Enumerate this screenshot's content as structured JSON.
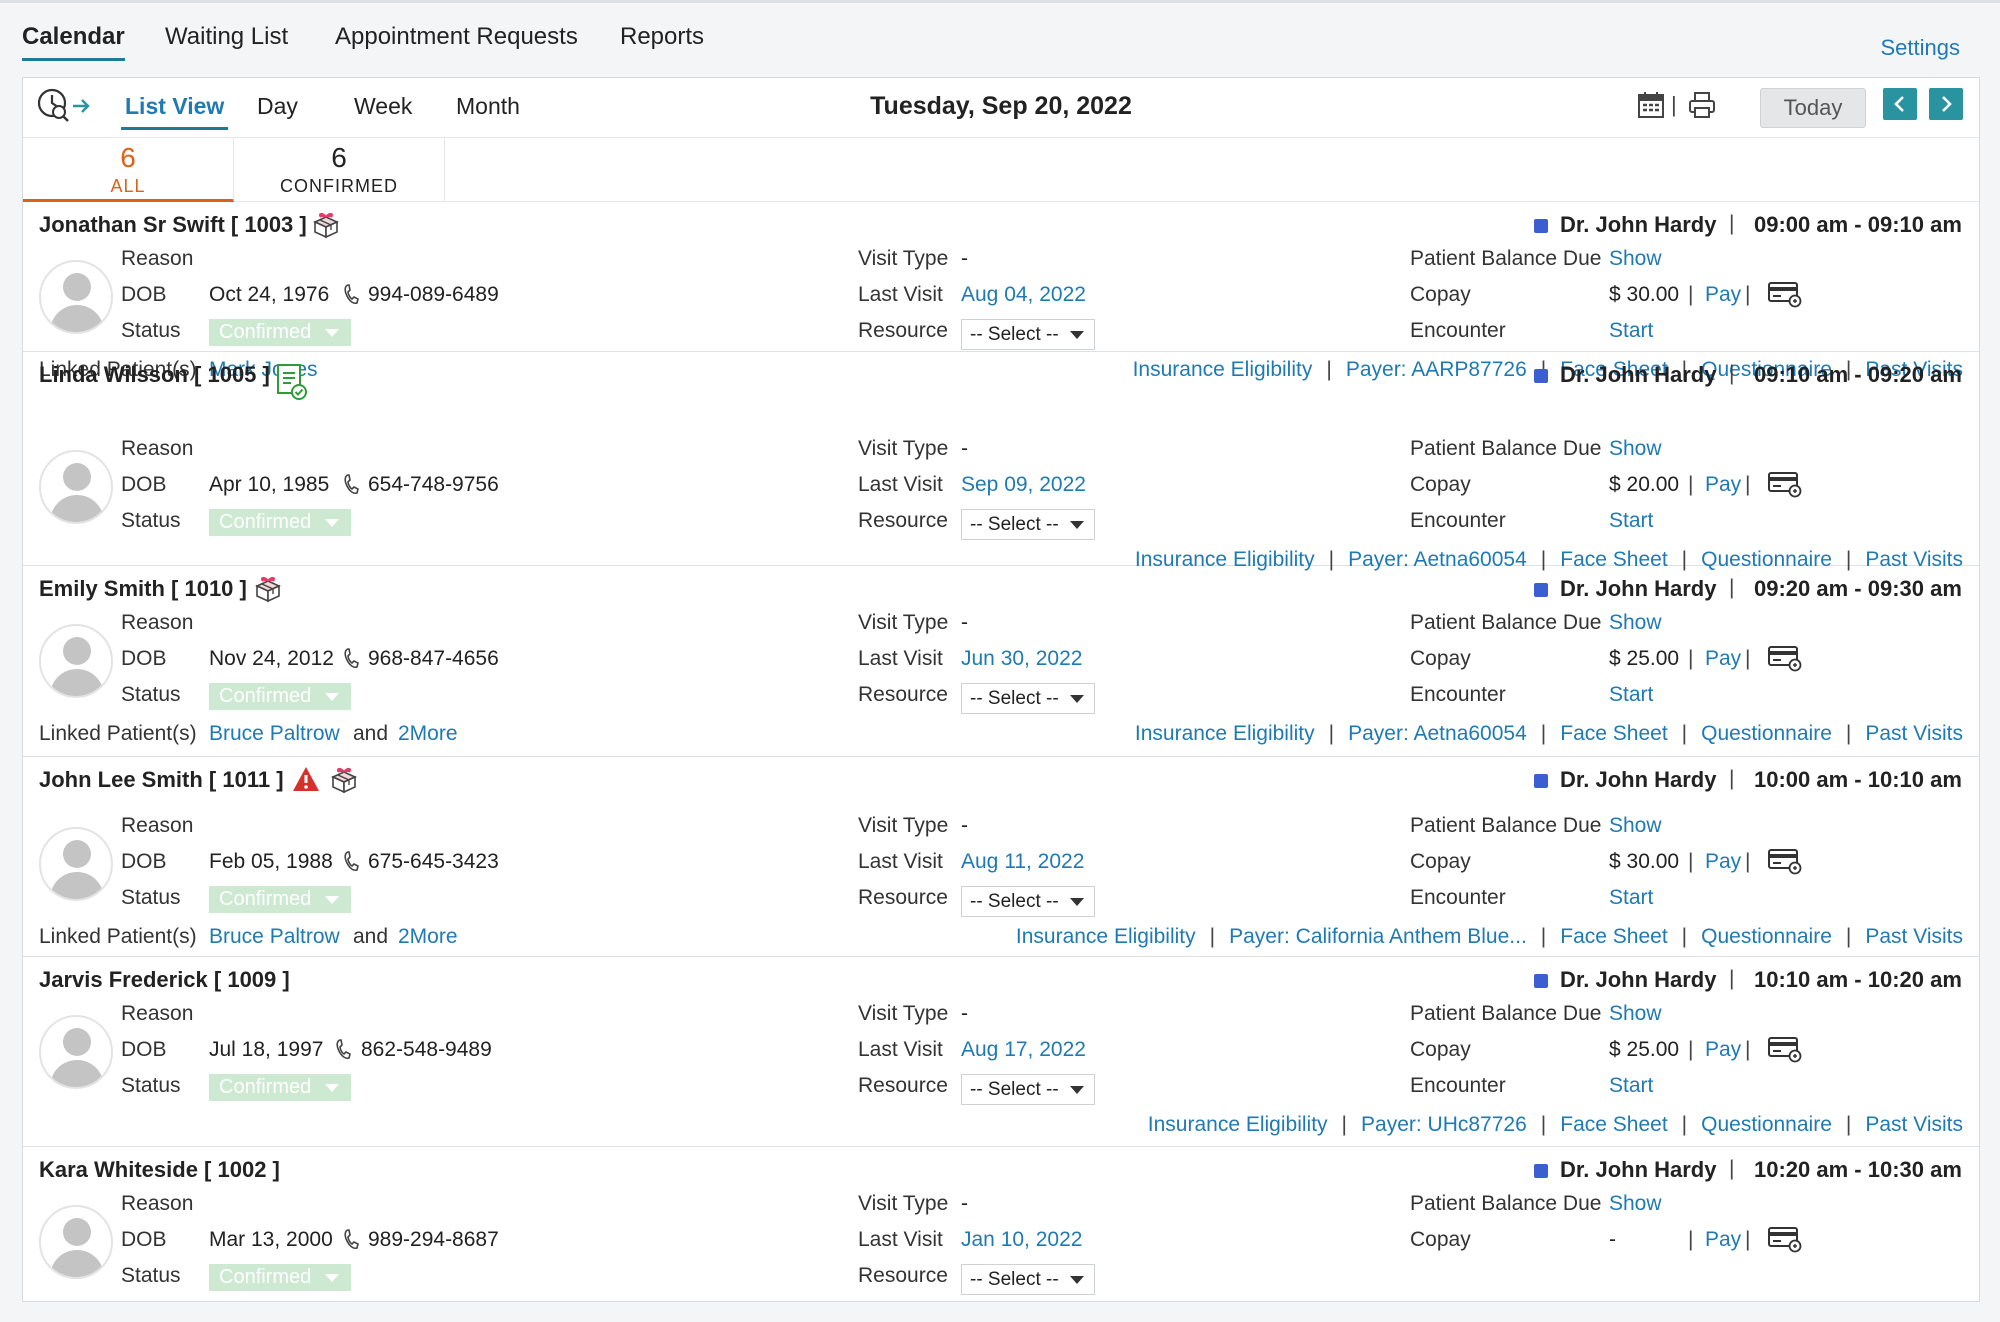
{
  "top_tabs": [
    {
      "label": "Calendar",
      "active": true
    },
    {
      "label": "Waiting List"
    },
    {
      "label": "Appointment Requests"
    },
    {
      "label": "Reports"
    }
  ],
  "settings_label": "Settings",
  "view_tabs": [
    {
      "label": "List View",
      "active": true
    },
    {
      "label": "Day"
    },
    {
      "label": "Week"
    },
    {
      "label": "Month"
    }
  ],
  "date_title": "Tuesday, Sep 20, 2022",
  "today_label": "Today",
  "filters": [
    {
      "count": "6",
      "label": "ALL",
      "active": true
    },
    {
      "count": "6",
      "label": "CONFIRMED"
    }
  ],
  "labels": {
    "reason": "Reason",
    "dob": "DOB",
    "status": "Status",
    "visit_type": "Visit Type",
    "last_visit": "Last Visit",
    "resource": "Resource",
    "patient_balance_due": "Patient Balance Due",
    "copay": "Copay",
    "encounter": "Encounter",
    "linked_patients": "Linked Patient(s)",
    "show": "Show",
    "pay": "Pay",
    "start": "Start",
    "and": "and",
    "insurance_eligibility": "Insurance Eligibility",
    "face_sheet": "Face Sheet",
    "questionnaire": "Questionnaire",
    "past_visits": "Past Visits",
    "pipe": "|"
  },
  "appointments": [
    {
      "name": "Jonathan Sr Swift [ 1003 ]",
      "icons": [
        "gift-box-icon"
      ],
      "doctor": "Dr. John Hardy",
      "time": "09:00 am - 09:10 am",
      "dob": "Oct 24, 1976",
      "phone": "994-089-6489",
      "status": "Confirmed",
      "visit_type": "-",
      "last_visit": "Aug 04, 2022",
      "resource": "-- Select --",
      "copay": "$ 30.00",
      "payer": "Payer: AARP87726",
      "linked": [
        "Mark Jones"
      ],
      "more": ""
    },
    {
      "name": "Linda Wilsson [ 1005 ]",
      "icons": [
        "form-check-icon"
      ],
      "doctor": "Dr. John Hardy",
      "time": "09:10 am - 09:20 am",
      "dob": "Apr 10, 1985",
      "phone": "654-748-9756",
      "status": "Confirmed",
      "visit_type": "-",
      "last_visit": "Sep 09, 2022",
      "resource": "-- Select --",
      "copay": "$ 20.00",
      "payer": "Payer: Aetna60054",
      "linked": [],
      "more": ""
    },
    {
      "name": "Emily Smith [ 1010 ]",
      "icons": [
        "gift-box-icon"
      ],
      "doctor": "Dr. John Hardy",
      "time": "09:20 am - 09:30 am",
      "dob": "Nov 24, 2012",
      "phone": "968-847-4656",
      "status": "Confirmed",
      "visit_type": "-",
      "last_visit": "Jun 30, 2022",
      "resource": "-- Select --",
      "copay": "$ 25.00",
      "payer": "Payer: Aetna60054",
      "linked": [
        "Bruce Paltrow"
      ],
      "more": "2More"
    },
    {
      "name": "John Lee Smith [ 1011 ]",
      "icons": [
        "warning-icon",
        "gift-box-icon"
      ],
      "doctor": "Dr. John Hardy",
      "time": "10:00 am - 10:10 am",
      "dob": "Feb 05, 1988",
      "phone": "675-645-3423",
      "status": "Confirmed",
      "visit_type": "-",
      "last_visit": "Aug 11, 2022",
      "resource": "-- Select --",
      "copay": "$ 30.00",
      "payer": "Payer: California Anthem Blue...",
      "linked": [
        "Bruce Paltrow"
      ],
      "more": "2More"
    },
    {
      "name": "Jarvis Frederick [ 1009 ]",
      "icons": [],
      "doctor": "Dr. John Hardy",
      "time": "10:10 am - 10:20 am",
      "dob": "Jul 18, 1997",
      "phone": "862-548-9489",
      "status": "Confirmed",
      "visit_type": "-",
      "last_visit": "Aug 17, 2022",
      "resource": "-- Select --",
      "copay": "$ 25.00",
      "payer": "Payer: UHc87726",
      "linked": [],
      "more": ""
    },
    {
      "name": "Kara Whiteside [ 1002 ]",
      "icons": [],
      "doctor": "Dr. John Hardy",
      "time": "10:20 am - 10:30 am",
      "dob": "Mar 13, 2000",
      "phone": "989-294-8687",
      "status": "Confirmed",
      "visit_type": "-",
      "last_visit": "Jan 10, 2022",
      "resource": "-- Select --",
      "copay": "-",
      "payer": "",
      "linked": [],
      "more": ""
    }
  ],
  "colors": {
    "accent": "#1f7ab4",
    "teal": "#29939f",
    "orange": "#e06018",
    "confirmed": "#cde9d2",
    "doctor": "#3b5fd0",
    "warning": "#d6302b"
  }
}
